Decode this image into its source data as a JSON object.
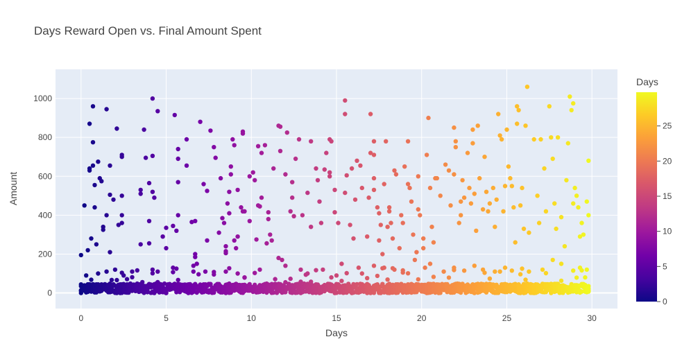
{
  "chart_data": {
    "type": "scatter",
    "title": "Days Reward Open vs. Final Amount Spent",
    "xlabel": "Days",
    "ylabel": "Amount",
    "xlim": [
      -1.5,
      31.5
    ],
    "ylim": [
      -80,
      1150
    ],
    "x_ticks": [
      0,
      5,
      10,
      15,
      20,
      25,
      30
    ],
    "y_ticks": [
      0,
      200,
      400,
      600,
      800,
      1000
    ],
    "grid": true,
    "background_color": "#E5ECF6",
    "colorscale": "plasma",
    "colorbar": {
      "title": "Days",
      "range": [
        0,
        29.8
      ],
      "ticks": [
        0,
        5,
        10,
        15,
        20,
        25
      ]
    },
    "color_by": "x",
    "outlier_points": [
      [
        0,
        195
      ],
      [
        0.2,
        450
      ],
      [
        0.3,
        90
      ],
      [
        0.4,
        220
      ],
      [
        0.5,
        870
      ],
      [
        0.5,
        640
      ],
      [
        0.5,
        630
      ],
      [
        0.6,
        280
      ],
      [
        0.7,
        960
      ],
      [
        0.7,
        775
      ],
      [
        0.7,
        655
      ],
      [
        0.8,
        555
      ],
      [
        0.8,
        440
      ],
      [
        0.9,
        250
      ],
      [
        1,
        675
      ],
      [
        1.1,
        590
      ],
      [
        1.2,
        575
      ],
      [
        1.3,
        340
      ],
      [
        1.3,
        325
      ],
      [
        1.5,
        945
      ],
      [
        1.5,
        400
      ],
      [
        1.7,
        655
      ],
      [
        1.7,
        505
      ],
      [
        1.7,
        210
      ],
      [
        1.9,
        480
      ],
      [
        2.1,
        845
      ],
      [
        2.2,
        350
      ],
      [
        2.4,
        710
      ],
      [
        2.4,
        700
      ],
      [
        2.4,
        500
      ],
      [
        2.4,
        400
      ],
      [
        2.4,
        360
      ],
      [
        3.5,
        250
      ],
      [
        3.5,
        530
      ],
      [
        3.5,
        510
      ],
      [
        3.7,
        840
      ],
      [
        3.8,
        695
      ],
      [
        4,
        565
      ],
      [
        4,
        370
      ],
      [
        4,
        255
      ],
      [
        4.2,
        1000
      ],
      [
        4.2,
        705
      ],
      [
        4.2,
        520
      ],
      [
        4.3,
        490
      ],
      [
        4.5,
        935
      ],
      [
        4.8,
        290
      ],
      [
        5,
        335
      ],
      [
        5,
        230
      ],
      [
        5.4,
        345
      ],
      [
        5.5,
        915
      ],
      [
        5.6,
        320
      ],
      [
        5.7,
        740
      ],
      [
        5.7,
        690
      ],
      [
        5.7,
        570
      ],
      [
        5.7,
        400
      ],
      [
        6.2,
        790
      ],
      [
        6.2,
        655
      ],
      [
        6.5,
        365
      ],
      [
        6.7,
        370
      ],
      [
        6.7,
        200
      ],
      [
        6.7,
        185
      ],
      [
        6.8,
        150
      ],
      [
        7,
        880
      ],
      [
        7.2,
        560
      ],
      [
        7.4,
        525
      ],
      [
        7.4,
        270
      ],
      [
        7.6,
        835
      ],
      [
        7.8,
        750
      ],
      [
        7.9,
        695
      ],
      [
        8.1,
        310
      ],
      [
        8.2,
        590
      ],
      [
        8.3,
        385
      ],
      [
        8.4,
        360
      ],
      [
        8.5,
        240
      ],
      [
        8.5,
        215
      ],
      [
        8.5,
        205
      ],
      [
        8.6,
        460
      ],
      [
        8.7,
        520
      ],
      [
        8.7,
        410
      ],
      [
        8.8,
        650
      ],
      [
        8.8,
        610
      ],
      [
        8.9,
        790
      ],
      [
        9,
        760
      ],
      [
        9,
        270
      ],
      [
        9.1,
        230
      ],
      [
        9.2,
        530
      ],
      [
        9.2,
        290
      ],
      [
        9.4,
        440
      ],
      [
        9.5,
        830
      ],
      [
        9.5,
        820
      ],
      [
        9.5,
        420
      ],
      [
        9.6,
        420
      ],
      [
        9.9,
        600
      ],
      [
        9.9,
        370
      ],
      [
        10.1,
        620
      ],
      [
        10.2,
        580
      ],
      [
        10.3,
        275
      ],
      [
        10.4,
        755
      ],
      [
        10.4,
        450
      ],
      [
        10.5,
        445
      ],
      [
        10.6,
        720
      ],
      [
        10.6,
        490
      ],
      [
        10.8,
        760
      ],
      [
        10.9,
        255
      ],
      [
        11,
        415
      ],
      [
        11,
        380
      ],
      [
        11.1,
        300
      ],
      [
        11.2,
        270
      ],
      [
        11.3,
        640
      ],
      [
        11.6,
        860
      ],
      [
        11.7,
        855
      ],
      [
        11.7,
        730
      ],
      [
        11.8,
        170
      ],
      [
        12,
        610
      ],
      [
        12.1,
        825
      ],
      [
        12.3,
        420
      ],
      [
        12.4,
        570
      ],
      [
        12.4,
        490
      ],
      [
        12.5,
        395
      ],
      [
        12.6,
        690
      ],
      [
        12.8,
        790
      ],
      [
        13,
        400
      ],
      [
        13.3,
        515
      ],
      [
        13.5,
        780
      ],
      [
        13.5,
        340
      ],
      [
        13.8,
        640
      ],
      [
        13.9,
        580
      ],
      [
        14,
        470
      ],
      [
        14.1,
        360
      ],
      [
        14.3,
        635
      ],
      [
        14.4,
        720
      ],
      [
        14.6,
        600
      ],
      [
        14.6,
        620
      ],
      [
        14.6,
        790
      ],
      [
        14.7,
        780
      ],
      [
        14.9,
        530
      ],
      [
        14.9,
        415
      ],
      [
        15.1,
        360
      ],
      [
        15.5,
        990
      ],
      [
        15.5,
        920
      ],
      [
        15.5,
        515
      ],
      [
        15.6,
        605
      ],
      [
        15.8,
        350
      ],
      [
        15.9,
        640
      ],
      [
        16,
        280
      ],
      [
        16.1,
        480
      ],
      [
        16.2,
        680
      ],
      [
        16.4,
        655
      ],
      [
        16.5,
        540
      ],
      [
        16.8,
        290
      ],
      [
        16.9,
        490
      ],
      [
        17,
        920
      ],
      [
        17,
        720
      ],
      [
        17.2,
        780
      ],
      [
        17.2,
        710
      ],
      [
        17.2,
        590
      ],
      [
        17.2,
        530
      ],
      [
        17.4,
        440
      ],
      [
        17.5,
        410
      ],
      [
        17.5,
        270
      ],
      [
        17.6,
        350
      ],
      [
        17.7,
        200
      ],
      [
        17.8,
        560
      ],
      [
        17.9,
        780
      ],
      [
        18,
        340
      ],
      [
        18.1,
        440
      ],
      [
        18.1,
        420
      ],
      [
        18.2,
        360
      ],
      [
        18.3,
        280
      ],
      [
        18.4,
        630
      ],
      [
        18.5,
        610
      ],
      [
        18.7,
        230
      ],
      [
        18.8,
        400
      ],
      [
        18.9,
        360
      ],
      [
        19,
        650
      ],
      [
        19.2,
        780
      ],
      [
        19.2,
        560
      ],
      [
        19.3,
        540
      ],
      [
        19.4,
        470
      ],
      [
        19.5,
        300
      ],
      [
        19.7,
        210
      ],
      [
        19.8,
        600
      ],
      [
        19.8,
        430
      ],
      [
        19.9,
        400
      ],
      [
        20.1,
        280
      ],
      [
        20.1,
        230
      ],
      [
        20.3,
        710
      ],
      [
        20.4,
        900
      ],
      [
        20.5,
        540
      ],
      [
        20.6,
        340
      ],
      [
        20.7,
        260
      ],
      [
        20.8,
        590
      ],
      [
        20.9,
        590
      ],
      [
        21.1,
        500
      ],
      [
        21.4,
        660
      ],
      [
        21.6,
        630
      ],
      [
        21.7,
        450
      ],
      [
        21.9,
        610
      ],
      [
        21.9,
        850
      ],
      [
        22,
        780
      ],
      [
        22,
        750
      ],
      [
        22.2,
        360
      ],
      [
        22.3,
        470
      ],
      [
        22.3,
        400
      ],
      [
        22.4,
        580
      ],
      [
        22.5,
        490
      ],
      [
        22.7,
        720
      ],
      [
        22.8,
        540
      ],
      [
        22.9,
        460
      ],
      [
        23,
        840
      ],
      [
        23,
        770
      ],
      [
        23.1,
        510
      ],
      [
        23.2,
        320
      ],
      [
        23.3,
        860
      ],
      [
        23.4,
        590
      ],
      [
        23.6,
        430
      ],
      [
        23.7,
        700
      ],
      [
        23.8,
        520
      ],
      [
        23.9,
        420
      ],
      [
        24,
        460
      ],
      [
        24.2,
        540
      ],
      [
        24.3,
        340
      ],
      [
        24.4,
        480
      ],
      [
        24.5,
        920
      ],
      [
        24.6,
        810
      ],
      [
        24.7,
        790
      ],
      [
        24.8,
        420
      ],
      [
        24.9,
        550
      ],
      [
        25,
        840
      ],
      [
        25.1,
        650
      ],
      [
        25.2,
        590
      ],
      [
        25.3,
        550
      ],
      [
        25.4,
        440
      ],
      [
        25.5,
        260
      ],
      [
        25.6,
        870
      ],
      [
        25.6,
        960
      ],
      [
        25.7,
        940
      ],
      [
        25.8,
        450
      ],
      [
        25.9,
        540
      ],
      [
        26,
        330
      ],
      [
        26.1,
        860
      ],
      [
        26.2,
        1060
      ],
      [
        26.3,
        310
      ],
      [
        26.6,
        790
      ],
      [
        26.8,
        500
      ],
      [
        26.9,
        360
      ],
      [
        27,
        790
      ],
      [
        27.2,
        640
      ],
      [
        27.3,
        420
      ],
      [
        27.5,
        960
      ],
      [
        27.6,
        800
      ],
      [
        27.7,
        690
      ],
      [
        27.8,
        460
      ],
      [
        27.9,
        330
      ],
      [
        28,
        800
      ],
      [
        28.2,
        390
      ],
      [
        28.4,
        240
      ],
      [
        28.5,
        580
      ],
      [
        28.6,
        770
      ],
      [
        28.7,
        1010
      ],
      [
        28.8,
        940
      ],
      [
        28.9,
        975
      ],
      [
        28.9,
        460
      ],
      [
        29,
        540
      ],
      [
        29.1,
        500
      ],
      [
        29.2,
        440
      ],
      [
        29.3,
        290
      ],
      [
        29.4,
        360
      ],
      [
        29.5,
        300
      ],
      [
        29.7,
        470
      ],
      [
        29.8,
        680
      ],
      [
        29.8,
        400
      ]
    ],
    "mid_points": [
      [
        1,
        100
      ],
      [
        1.5,
        110
      ],
      [
        2,
        120
      ],
      [
        2.5,
        90
      ],
      [
        3,
        110
      ],
      [
        4.2,
        120
      ],
      [
        4.5,
        110
      ],
      [
        5.4,
        130
      ],
      [
        5.6,
        125
      ],
      [
        6.6,
        140
      ],
      [
        7.3,
        110
      ],
      [
        7.8,
        95
      ],
      [
        8.5,
        110
      ],
      [
        9.2,
        100
      ],
      [
        9.6,
        80
      ],
      [
        10.5,
        120
      ],
      [
        11.6,
        180
      ],
      [
        12,
        140
      ],
      [
        12.9,
        120
      ],
      [
        13.3,
        100
      ],
      [
        14.2,
        120
      ],
      [
        15,
        90
      ],
      [
        15.3,
        150
      ],
      [
        16.3,
        130
      ],
      [
        17.2,
        140
      ],
      [
        17.8,
        130
      ],
      [
        18.4,
        120
      ],
      [
        18.9,
        105
      ],
      [
        19.6,
        170
      ],
      [
        20.2,
        130
      ],
      [
        20.5,
        150
      ],
      [
        21.3,
        110
      ],
      [
        21.9,
        130
      ],
      [
        22.5,
        115
      ],
      [
        23.1,
        140
      ],
      [
        23.6,
        120
      ],
      [
        24.3,
        110
      ],
      [
        24.9,
        130
      ],
      [
        25.3,
        115
      ],
      [
        25.9,
        125
      ],
      [
        26.3,
        110
      ],
      [
        27.1,
        120
      ],
      [
        27.7,
        170
      ],
      [
        28.2,
        150
      ],
      [
        28.9,
        115
      ],
      [
        29.3,
        130
      ],
      [
        29.6,
        80
      ]
    ]
  }
}
